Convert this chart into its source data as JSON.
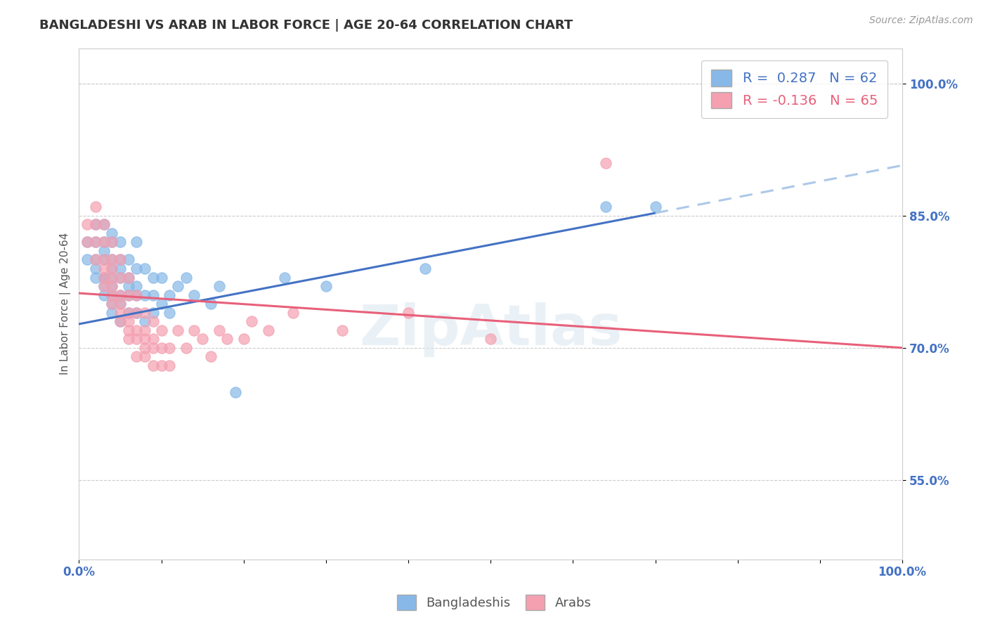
{
  "title": "BANGLADESHI VS ARAB IN LABOR FORCE | AGE 20-64 CORRELATION CHART",
  "source": "Source: ZipAtlas.com",
  "ylabel": "In Labor Force | Age 20-64",
  "xlim": [
    0.0,
    1.0
  ],
  "ylim": [
    0.46,
    1.04
  ],
  "ytick_positions": [
    0.55,
    0.7,
    0.85,
    1.0
  ],
  "ytick_labels": [
    "55.0%",
    "70.0%",
    "85.0%",
    "100.0%"
  ],
  "bangladeshi_color": "#87b8e8",
  "arab_color": "#f4a0b0",
  "trend_bangladeshi_color": "#4472c4",
  "trend_arab_color": "#e8607a",
  "trend_dash_color": "#adc8e8",
  "bangladeshi_x": [
    0.01,
    0.01,
    0.02,
    0.02,
    0.02,
    0.02,
    0.02,
    0.03,
    0.03,
    0.03,
    0.03,
    0.03,
    0.03,
    0.03,
    0.03,
    0.04,
    0.04,
    0.04,
    0.04,
    0.04,
    0.04,
    0.04,
    0.04,
    0.04,
    0.05,
    0.05,
    0.05,
    0.05,
    0.05,
    0.05,
    0.05,
    0.06,
    0.06,
    0.06,
    0.06,
    0.06,
    0.07,
    0.07,
    0.07,
    0.07,
    0.07,
    0.08,
    0.08,
    0.08,
    0.09,
    0.09,
    0.09,
    0.1,
    0.1,
    0.11,
    0.11,
    0.12,
    0.13,
    0.14,
    0.16,
    0.17,
    0.19,
    0.25,
    0.3,
    0.42,
    0.64,
    0.7
  ],
  "bangladeshi_y": [
    0.8,
    0.82,
    0.78,
    0.8,
    0.82,
    0.84,
    0.79,
    0.76,
    0.78,
    0.8,
    0.82,
    0.84,
    0.77,
    0.78,
    0.81,
    0.74,
    0.76,
    0.78,
    0.8,
    0.82,
    0.75,
    0.77,
    0.79,
    0.83,
    0.73,
    0.75,
    0.78,
    0.8,
    0.76,
    0.79,
    0.82,
    0.74,
    0.76,
    0.78,
    0.8,
    0.77,
    0.74,
    0.77,
    0.79,
    0.82,
    0.76,
    0.73,
    0.76,
    0.79,
    0.76,
    0.74,
    0.78,
    0.75,
    0.78,
    0.76,
    0.74,
    0.77,
    0.78,
    0.76,
    0.75,
    0.77,
    0.65,
    0.78,
    0.77,
    0.79,
    0.86,
    0.86
  ],
  "arab_x": [
    0.01,
    0.01,
    0.02,
    0.02,
    0.02,
    0.02,
    0.03,
    0.03,
    0.03,
    0.03,
    0.03,
    0.03,
    0.04,
    0.04,
    0.04,
    0.04,
    0.04,
    0.04,
    0.04,
    0.05,
    0.05,
    0.05,
    0.05,
    0.05,
    0.05,
    0.06,
    0.06,
    0.06,
    0.06,
    0.06,
    0.06,
    0.07,
    0.07,
    0.07,
    0.07,
    0.07,
    0.08,
    0.08,
    0.08,
    0.08,
    0.08,
    0.09,
    0.09,
    0.09,
    0.09,
    0.1,
    0.1,
    0.1,
    0.11,
    0.11,
    0.12,
    0.13,
    0.14,
    0.15,
    0.16,
    0.17,
    0.18,
    0.2,
    0.21,
    0.23,
    0.26,
    0.32,
    0.4,
    0.5,
    0.64
  ],
  "arab_y": [
    0.82,
    0.84,
    0.8,
    0.82,
    0.84,
    0.86,
    0.78,
    0.8,
    0.82,
    0.84,
    0.79,
    0.77,
    0.76,
    0.78,
    0.8,
    0.82,
    0.75,
    0.77,
    0.79,
    0.74,
    0.76,
    0.78,
    0.8,
    0.73,
    0.75,
    0.72,
    0.74,
    0.76,
    0.78,
    0.73,
    0.71,
    0.72,
    0.74,
    0.76,
    0.71,
    0.69,
    0.7,
    0.72,
    0.74,
    0.71,
    0.69,
    0.71,
    0.73,
    0.7,
    0.68,
    0.72,
    0.7,
    0.68,
    0.7,
    0.68,
    0.72,
    0.7,
    0.72,
    0.71,
    0.69,
    0.72,
    0.71,
    0.71,
    0.73,
    0.72,
    0.74,
    0.72,
    0.74,
    0.71,
    0.91
  ],
  "trend_b_x0": 0.0,
  "trend_b_y0": 0.727,
  "trend_b_x1": 0.7,
  "trend_b_y1": 0.853,
  "trend_b_dash_x0": 0.7,
  "trend_b_dash_y0": 0.853,
  "trend_b_dash_x1": 1.0,
  "trend_b_dash_y1": 0.907,
  "trend_a_x0": 0.0,
  "trend_a_y0": 0.762,
  "trend_a_x1": 1.0,
  "trend_a_y1": 0.7
}
